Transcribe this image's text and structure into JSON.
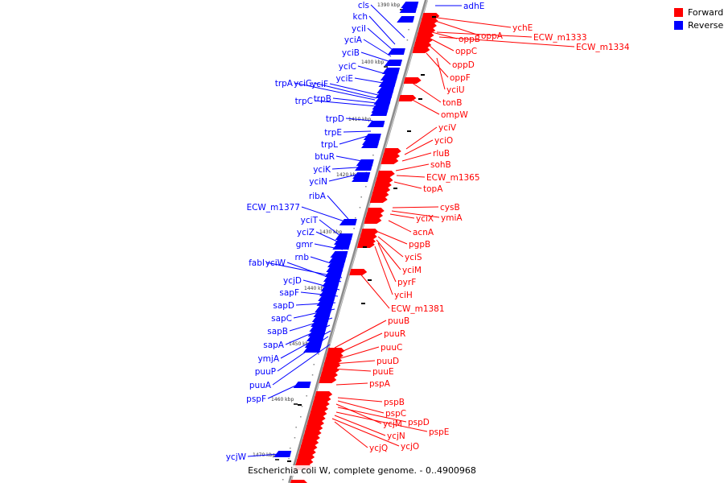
{
  "caption": "Escherichia coli W, complete genome. - 0..4900968",
  "legend": [
    {
      "label": "Forward",
      "color": "#ff0000"
    },
    {
      "label": "Reverse",
      "color": "#0000ff"
    }
  ],
  "colors": {
    "forward": "#ff0000",
    "reverse": "#0000ff",
    "backbone": "#8c8c8c"
  },
  "ruler_ticks": [
    "1390 kbp",
    "1400 kbp",
    "1410 kbp",
    "1420 kbp",
    "1430 kbp",
    "1440 kbp",
    "1450 kbp",
    "1460 kbp",
    "1470 kbp"
  ],
  "reverse_genes": [
    "adhE",
    "cls",
    "kch",
    "yciI",
    "yciA",
    "yciB",
    "yciC",
    "yciE",
    "trpA",
    "yciG",
    "yciF",
    "trpB",
    "trpC",
    "trpD",
    "trpE",
    "trpL",
    "btuR",
    "yciK",
    "yciN",
    "ribA",
    "ECW_m1377",
    "yciT",
    "yciZ",
    "gmr",
    "rnb",
    "fabI",
    "yciW",
    "ycjD",
    "sapF",
    "sapD",
    "sapC",
    "sapB",
    "sapA",
    "ymjA",
    "puuP",
    "puuA",
    "pspF",
    "ycjW"
  ],
  "forward_genes": [
    "ychE",
    "oppA",
    "ECW_m1333",
    "ECW_m1334",
    "oppB",
    "oppC",
    "oppD",
    "oppF",
    "yciU",
    "tonB",
    "ompW",
    "yciV",
    "yciO",
    "rluB",
    "sohB",
    "ECW_m1365",
    "topA",
    "cysB",
    "yciX",
    "ymiA",
    "acnA",
    "pgpB",
    "yciS",
    "yciM",
    "pyrF",
    "yciH",
    "ECW_m1381",
    "puuB",
    "puuR",
    "puuC",
    "puuD",
    "puuE",
    "pspA",
    "pspB",
    "pspC",
    "ycjM",
    "pspD",
    "pspE",
    "ycjN",
    "ycjO",
    "ycjQ"
  ]
}
